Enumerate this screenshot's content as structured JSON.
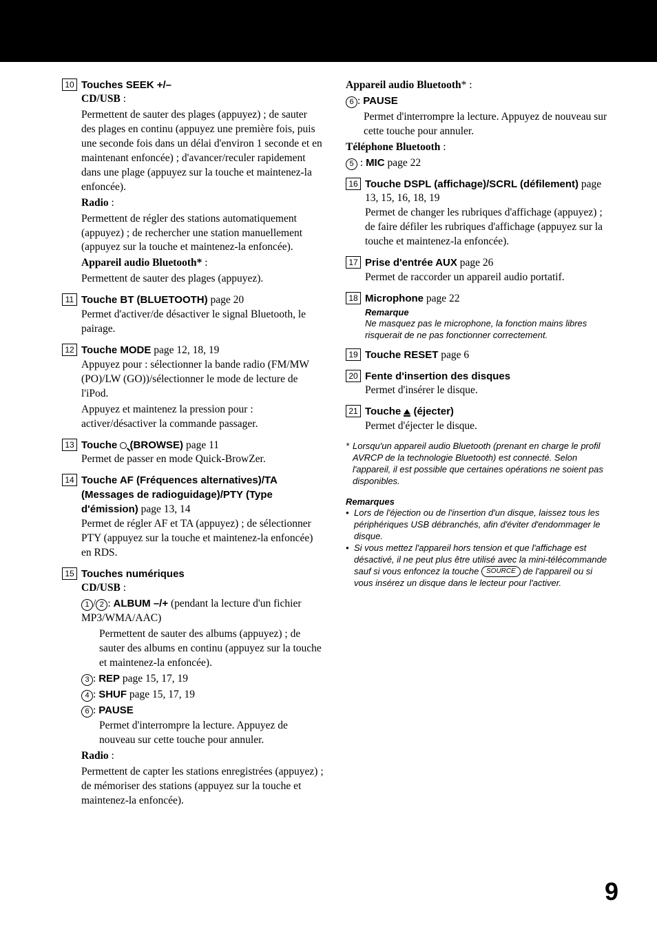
{
  "left": {
    "i10": {
      "num": "10",
      "title": "Touches SEEK +/–",
      "sub1": "CD/USB",
      "p1": "Permettent de sauter des plages (appuyez) ; de sauter des plages en continu (appuyez une première fois, puis une seconde fois dans un délai d'environ 1 seconde et en maintenant enfoncée) ; d'avancer/reculer rapidement dans une plage (appuyez sur la touche et maintenez-la enfoncée).",
      "sub2": "Radio",
      "p2": "Permettent de régler des stations automatiquement (appuyez) ; de rechercher une station manuellement (appuyez sur la touche et maintenez-la enfoncée).",
      "sub3": "Appareil audio Bluetooth*",
      "p3": "Permettent de sauter des plages (appuyez)."
    },
    "i11": {
      "num": "11",
      "title": "Touche BT (BLUETOOTH)",
      "ref": "  page 20",
      "p1": "Permet d'activer/de désactiver le signal Bluetooth, le pairage."
    },
    "i12": {
      "num": "12",
      "title": "Touche MODE",
      "ref": "  page 12, 18, 19",
      "p1": "Appuyez pour : sélectionner la bande radio (FM/MW (PO)/LW (GO))/sélectionner le mode de lecture de l'iPod.",
      "p2": "Appuyez et maintenez la pression pour : activer/désactiver la commande passager."
    },
    "i13": {
      "num": "13",
      "title_a": "Touche ",
      "title_b": " (BROWSE)",
      "ref": "  page 11",
      "p1": "Permet de passer en mode Quick-BrowZer."
    },
    "i14": {
      "num": "14",
      "title": "Touche AF (Fréquences alternatives)/TA (Messages de radioguidage)/PTY (Type d'émission)",
      "ref": "  page 13, 14",
      "p1": "Permet de régler AF et TA (appuyez) ; de sélectionner PTY (appuyez sur la touche et maintenez-la enfoncée) en RDS."
    },
    "i15": {
      "num": "15",
      "title": "Touches numériques",
      "sub1": "CD/USB",
      "album": "ALBUM –/+",
      "album_tail": " (pendant la lecture d'un fichier MP3/WMA/AAC)",
      "album_p": "Permettent de sauter des albums (appuyez) ; de sauter des albums en continu (appuyez sur la touche et maintenez-la enfoncée).",
      "rep": "REP",
      "rep_ref": "  page 15, 17, 19",
      "shuf": "SHUF",
      "shuf_ref": "  page 15, 17, 19",
      "pause": "PAUSE",
      "pause_p": "Permet d'interrompre la lecture. Appuyez de nouveau sur cette touche pour annuler.",
      "sub2": "Radio",
      "radio_p": "Permettent de capter les stations enregistrées (appuyez) ; de mémoriser des stations (appuyez sur la touche et maintenez-la enfoncée)."
    }
  },
  "right": {
    "bt": {
      "title": "Appareil audio Bluetooth",
      "pause": "PAUSE",
      "pause_p": "Permet d'interrompre la lecture. Appuyez de nouveau sur cette touche pour annuler.",
      "tel": "Téléphone Bluetooth",
      "mic": "MIC",
      "mic_ref": "  page 22"
    },
    "i16": {
      "num": "16",
      "title": "Touche DSPL (affichage)/SCRL (défilement)",
      "ref": "  page 13, 15, 16, 18, 19",
      "p1": "Permet de changer les rubriques d'affichage (appuyez) ; de faire défiler les rubriques d'affichage (appuyez sur la touche et maintenez-la enfoncée)."
    },
    "i17": {
      "num": "17",
      "title": "Prise d'entrée AUX",
      "ref": "  page 26",
      "p1": "Permet de raccorder un appareil audio portatif."
    },
    "i18": {
      "num": "18",
      "title": "Microphone",
      "ref": "  page 22",
      "rh": "Remarque",
      "rb": "Ne masquez pas le microphone, la fonction mains libres risquerait de ne pas fonctionner correctement."
    },
    "i19": {
      "num": "19",
      "title_a": "Touche  RESET",
      "ref": "  page 6"
    },
    "i20": {
      "num": "20",
      "title": "Fente d'insertion des disques",
      "p1": "Permet d'insérer le disque."
    },
    "i21": {
      "num": "21",
      "title_a": "Touche ",
      "title_b": " (éjecter)",
      "p1": "Permet d'éjecter le disque."
    },
    "footnote": "Lorsqu'un appareil audio Bluetooth (prenant en charge le profil AVRCP de la technologie Bluetooth) est connecté. Selon l'appareil, il est possible que certaines opérations ne soient pas disponibles.",
    "remarks_h": "Remarques",
    "r1": "Lors de l'éjection ou de l'insertion d'un disque, laissez tous les périphériques USB débranchés, afin d'éviter d'endommager le disque.",
    "r2a": "Si vous mettez l'appareil hors tension et que l'affichage est désactivé, il ne peut plus être utilisé avec la mini-télécommande sauf si vous enfoncez la touche ",
    "r2_btn": "SOURCE",
    "r2b": " de l'appareil ou si vous insérez un disque dans le lecteur pour l'activer."
  },
  "page": "9"
}
